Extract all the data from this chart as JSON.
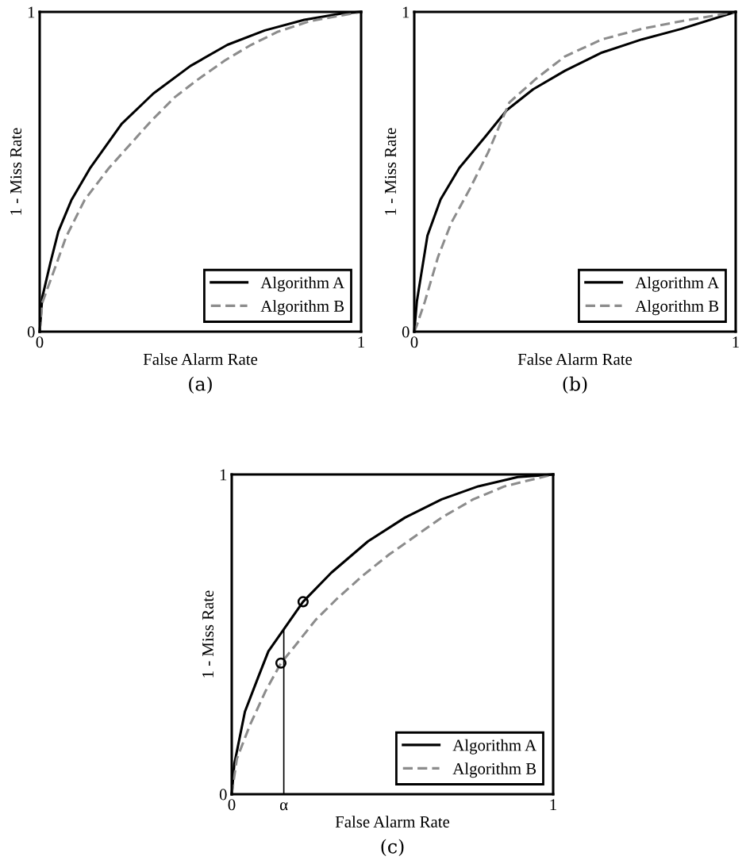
{
  "chart_data": [
    {
      "type": "line",
      "xlabel": "False Alarm Rate",
      "ylabel": "1 - Miss Rate",
      "xlim": [
        0,
        1
      ],
      "ylim": [
        0,
        1
      ],
      "xticks": [
        0,
        1
      ],
      "yticks": [
        0,
        1
      ],
      "grid": false,
      "legend": "bottom right",
      "annotations": [
        "(a)"
      ],
      "series": [
        {
          "name": "Algorithm A",
          "color": "#000000",
          "line_style": "solid",
          "x": [
            0,
            0.008,
            0.033,
            0.058,
            0.099,
            0.156,
            0.255,
            0.354,
            0.469,
            0.584,
            0.7,
            0.823,
            0.947,
            1
          ],
          "values": [
            0,
            0.107,
            0.214,
            0.313,
            0.412,
            0.51,
            0.65,
            0.745,
            0.831,
            0.897,
            0.942,
            0.975,
            0.996,
            1
          ]
        },
        {
          "name": "Algorithm B",
          "color": "#8c8c8c",
          "line_style": "dashed",
          "x": [
            0,
            0.008,
            0.053,
            0.082,
            0.14,
            0.214,
            0.288,
            0.346,
            0.42,
            0.494,
            0.576,
            0.658,
            0.741,
            0.84,
            1
          ],
          "values": [
            0,
            0.09,
            0.214,
            0.296,
            0.412,
            0.51,
            0.593,
            0.658,
            0.733,
            0.79,
            0.848,
            0.897,
            0.938,
            0.971,
            1
          ]
        }
      ]
    },
    {
      "type": "line",
      "xlabel": "False Alarm Rate",
      "ylabel": "1 - Miss Rate",
      "xlim": [
        0,
        1
      ],
      "ylim": [
        0,
        1
      ],
      "xticks": [
        0,
        1
      ],
      "yticks": [
        0,
        1
      ],
      "grid": false,
      "legend": "bottom right",
      "annotations": [
        "(b)"
      ],
      "series": [
        {
          "name": "Algorithm A",
          "color": "#000000",
          "line_style": "solid",
          "x": [
            0,
            0.008,
            0.041,
            0.082,
            0.14,
            0.222,
            0.288,
            0.37,
            0.469,
            0.584,
            0.708,
            0.831,
            1
          ],
          "values": [
            0,
            0.094,
            0.3,
            0.414,
            0.512,
            0.611,
            0.693,
            0.758,
            0.816,
            0.873,
            0.914,
            0.947,
            1
          ]
        },
        {
          "name": "Algorithm B",
          "color": "#8c8c8c",
          "line_style": "dashed",
          "x": [
            0,
            0.008,
            0.033,
            0.074,
            0.115,
            0.173,
            0.23,
            0.296,
            0.379,
            0.469,
            0.584,
            0.708,
            0.831,
            1
          ],
          "values": [
            0,
            0.02,
            0.094,
            0.234,
            0.34,
            0.447,
            0.561,
            0.717,
            0.791,
            0.861,
            0.914,
            0.947,
            0.971,
            1
          ]
        }
      ]
    },
    {
      "type": "line",
      "xlabel": "False Alarm Rate",
      "ylabel": "1 - Miss Rate",
      "xlim": [
        0,
        1
      ],
      "ylim": [
        0,
        1
      ],
      "xticks": [
        0,
        {
          "value": 0.162,
          "label": "α"
        },
        1
      ],
      "yticks": [
        0,
        1
      ],
      "grid": false,
      "legend": "bottom right",
      "annotations": [
        "(c)"
      ],
      "series": [
        {
          "name": "Algorithm A",
          "color": "#000000",
          "line_style": "solid",
          "x": [
            0,
            0.008,
            0.041,
            0.082,
            0.114,
            0.162,
            0.222,
            0.31,
            0.424,
            0.539,
            0.653,
            0.767,
            0.89,
            1
          ],
          "values": [
            0,
            0.094,
            0.258,
            0.365,
            0.447,
            0.516,
            0.602,
            0.693,
            0.791,
            0.865,
            0.922,
            0.963,
            0.992,
            1
          ]
        },
        {
          "name": "Algorithm B",
          "color": "#8c8c8c",
          "line_style": "dashed",
          "x": [
            0,
            0.016,
            0.057,
            0.106,
            0.153,
            0.196,
            0.261,
            0.327,
            0.408,
            0.49,
            0.571,
            0.653,
            0.751,
            0.849,
            1
          ],
          "values": [
            0,
            0.111,
            0.217,
            0.324,
            0.41,
            0.463,
            0.545,
            0.611,
            0.684,
            0.75,
            0.807,
            0.865,
            0.922,
            0.963,
            1
          ]
        },
        {
          "type": "line",
          "color": "#000000",
          "line_style": "solid",
          "x": [
            0.162,
            0.162
          ],
          "values": [
            0,
            0.516
          ]
        },
        {
          "type": "scatter",
          "color": "#000000",
          "marker": "circle",
          "x": [
            0.222,
            0.153
          ],
          "values": [
            0.602,
            0.41
          ]
        }
      ]
    }
  ]
}
